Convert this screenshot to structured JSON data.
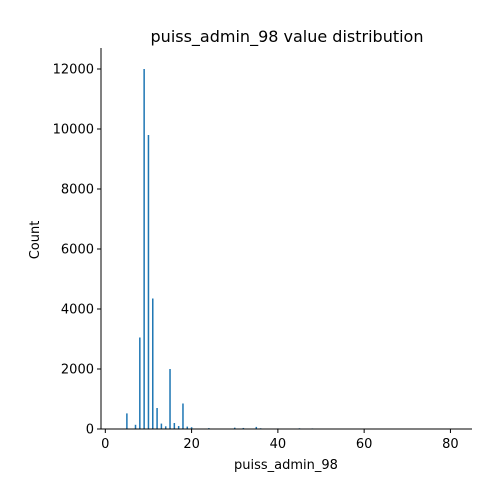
{
  "chart_data": {
    "type": "bar",
    "title": "puiss_admin_98 value distribution",
    "xlabel": "puiss_admin_98",
    "ylabel": "Count",
    "xlim": [
      -1,
      85
    ],
    "ylim": [
      0,
      12700
    ],
    "x_ticks": [
      0,
      20,
      40,
      60,
      80
    ],
    "y_ticks": [
      0,
      2000,
      4000,
      6000,
      8000,
      10000,
      12000
    ],
    "bar_width": 0.35,
    "grid": false,
    "colors": {
      "bar": "#1f77b4",
      "axis": "#000000"
    },
    "bins": [
      {
        "x": 5,
        "count": 520
      },
      {
        "x": 7,
        "count": 140
      },
      {
        "x": 8,
        "count": 3050
      },
      {
        "x": 9,
        "count": 12000
      },
      {
        "x": 10,
        "count": 9800
      },
      {
        "x": 11,
        "count": 4350
      },
      {
        "x": 12,
        "count": 700
      },
      {
        "x": 13,
        "count": 180
      },
      {
        "x": 14,
        "count": 90
      },
      {
        "x": 15,
        "count": 2000
      },
      {
        "x": 16,
        "count": 200
      },
      {
        "x": 17,
        "count": 100
      },
      {
        "x": 18,
        "count": 850
      },
      {
        "x": 19,
        "count": 80
      },
      {
        "x": 20,
        "count": 60
      },
      {
        "x": 24,
        "count": 30
      },
      {
        "x": 30,
        "count": 45
      },
      {
        "x": 32,
        "count": 35
      },
      {
        "x": 35,
        "count": 70
      },
      {
        "x": 36,
        "count": 25
      },
      {
        "x": 40,
        "count": 20
      },
      {
        "x": 45,
        "count": 25
      },
      {
        "x": 48,
        "count": 20
      },
      {
        "x": 51,
        "count": 15
      },
      {
        "x": 57,
        "count": 15
      },
      {
        "x": 60,
        "count": 12
      },
      {
        "x": 71,
        "count": 8
      },
      {
        "x": 81,
        "count": 5
      }
    ]
  }
}
